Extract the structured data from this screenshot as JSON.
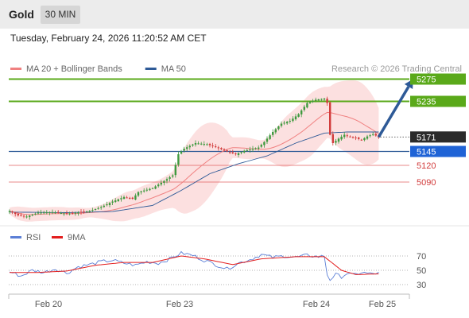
{
  "header": {
    "symbol": "Gold",
    "interval": "30 MIN"
  },
  "datetime": "Tuesday, February 24, 2026 11:20:52 AM CET",
  "legend": {
    "items": [
      {
        "label": "MA 20 + Bollinger Bands",
        "color": "#f08080"
      },
      {
        "label": "MA 50",
        "color": "#2e5a97"
      }
    ],
    "credit": "Research © 2026 Trading Central"
  },
  "rsi_legend": {
    "items": [
      {
        "label": "RSI",
        "color": "#5b7fd6"
      },
      {
        "label": "9MA",
        "color": "#e31e1e"
      }
    ]
  },
  "colors": {
    "resistance": "#5aa91a",
    "support_blue": "#2e5a97",
    "support_red": "#e06060",
    "last_price": "#2b2b2b",
    "arrow": "#2e5a97",
    "candle_up": "#3f9a3f",
    "candle_down": "#d23c3c",
    "band_fill": "#fbdada"
  },
  "chart_data": [
    {
      "type": "line",
      "title": "",
      "x_ticks": [
        "Feb 20",
        "Feb 23",
        "Feb 24",
        "Feb 25"
      ],
      "y_range": [
        5020,
        5290
      ],
      "last_price": 5171,
      "levels": [
        {
          "value": 5275,
          "kind": "resistance"
        },
        {
          "value": 5235,
          "kind": "resistance"
        },
        {
          "value": 5145,
          "kind": "support"
        },
        {
          "value": 5120,
          "kind": "support_minor"
        },
        {
          "value": 5090,
          "kind": "support_minor"
        }
      ],
      "close_path": [
        {
          "bar": 0,
          "close": 5038
        },
        {
          "bar": 3,
          "close": 5030
        },
        {
          "bar": 6,
          "close": 5028
        },
        {
          "bar": 10,
          "close": 5035
        },
        {
          "bar": 15,
          "close": 5036
        },
        {
          "bar": 20,
          "close": 5033
        },
        {
          "bar": 25,
          "close": 5036
        },
        {
          "bar": 28,
          "close": 5038
        },
        {
          "bar": 32,
          "close": 5045
        },
        {
          "bar": 36,
          "close": 5055
        },
        {
          "bar": 40,
          "close": 5063
        },
        {
          "bar": 43,
          "close": 5060
        },
        {
          "bar": 45,
          "close": 5072
        },
        {
          "bar": 50,
          "close": 5079
        },
        {
          "bar": 54,
          "close": 5092
        },
        {
          "bar": 57,
          "close": 5102
        },
        {
          "bar": 59,
          "close": 5140
        },
        {
          "bar": 61,
          "close": 5150
        },
        {
          "bar": 65,
          "close": 5160
        },
        {
          "bar": 69,
          "close": 5158
        },
        {
          "bar": 73,
          "close": 5151
        },
        {
          "bar": 76,
          "close": 5145
        },
        {
          "bar": 79,
          "close": 5140
        },
        {
          "bar": 82,
          "close": 5146
        },
        {
          "bar": 85,
          "close": 5150
        },
        {
          "bar": 87,
          "close": 5152
        },
        {
          "bar": 89,
          "close": 5162
        },
        {
          "bar": 92,
          "close": 5180
        },
        {
          "bar": 95,
          "close": 5195
        },
        {
          "bar": 98,
          "close": 5200
        },
        {
          "bar": 101,
          "close": 5212
        },
        {
          "bar": 104,
          "close": 5232
        },
        {
          "bar": 107,
          "close": 5238
        },
        {
          "bar": 110,
          "close": 5240
        },
        {
          "bar": 111,
          "close": 5232
        },
        {
          "bar": 112,
          "close": 5175
        },
        {
          "bar": 113,
          "close": 5160
        },
        {
          "bar": 115,
          "close": 5168
        },
        {
          "bar": 117,
          "close": 5175
        },
        {
          "bar": 120,
          "close": 5170
        },
        {
          "bar": 123,
          "close": 5166
        },
        {
          "bar": 125,
          "close": 5172
        },
        {
          "bar": 127,
          "close": 5176
        },
        {
          "bar": 129,
          "close": 5171
        }
      ],
      "ma50": [
        {
          "bar": 0,
          "value": 5036
        },
        {
          "bar": 20,
          "value": 5035
        },
        {
          "bar": 36,
          "value": 5037
        },
        {
          "bar": 50,
          "value": 5048
        },
        {
          "bar": 60,
          "value": 5075
        },
        {
          "bar": 70,
          "value": 5105
        },
        {
          "bar": 80,
          "value": 5123
        },
        {
          "bar": 90,
          "value": 5137
        },
        {
          "bar": 100,
          "value": 5160
        },
        {
          "bar": 110,
          "value": 5178
        },
        {
          "bar": 118,
          "value": 5180
        },
        {
          "bar": 129,
          "value": 5180
        }
      ],
      "projection": {
        "from_bar": 129,
        "from_value": 5171,
        "to_bar": 141,
        "to_value": 5275
      },
      "rsi": {
        "axis_ticks": [
          70,
          50,
          30
        ],
        "y_range": [
          20,
          80
        ],
        "rsi": [
          {
            "bar": 0,
            "value": 48
          },
          {
            "bar": 4,
            "value": 42
          },
          {
            "bar": 8,
            "value": 50
          },
          {
            "bar": 12,
            "value": 47
          },
          {
            "bar": 16,
            "value": 52
          },
          {
            "bar": 20,
            "value": 46
          },
          {
            "bar": 24,
            "value": 55
          },
          {
            "bar": 28,
            "value": 58
          },
          {
            "bar": 32,
            "value": 62
          },
          {
            "bar": 36,
            "value": 64
          },
          {
            "bar": 40,
            "value": 60
          },
          {
            "bar": 44,
            "value": 57
          },
          {
            "bar": 48,
            "value": 62
          },
          {
            "bar": 52,
            "value": 60
          },
          {
            "bar": 56,
            "value": 66
          },
          {
            "bar": 60,
            "value": 74
          },
          {
            "bar": 64,
            "value": 71
          },
          {
            "bar": 68,
            "value": 64
          },
          {
            "bar": 72,
            "value": 58
          },
          {
            "bar": 76,
            "value": 52
          },
          {
            "bar": 80,
            "value": 60
          },
          {
            "bar": 84,
            "value": 65
          },
          {
            "bar": 88,
            "value": 72
          },
          {
            "bar": 92,
            "value": 68
          },
          {
            "bar": 96,
            "value": 70
          },
          {
            "bar": 100,
            "value": 68
          },
          {
            "bar": 104,
            "value": 71
          },
          {
            "bar": 108,
            "value": 69
          },
          {
            "bar": 110,
            "value": 70
          },
          {
            "bar": 111,
            "value": 44
          },
          {
            "bar": 112,
            "value": 37
          },
          {
            "bar": 114,
            "value": 44
          },
          {
            "bar": 116,
            "value": 41
          },
          {
            "bar": 118,
            "value": 46
          },
          {
            "bar": 120,
            "value": 43
          },
          {
            "bar": 123,
            "value": 47
          },
          {
            "bar": 126,
            "value": 45
          },
          {
            "bar": 129,
            "value": 46
          }
        ],
        "ma9": [
          {
            "bar": 0,
            "value": 47
          },
          {
            "bar": 10,
            "value": 47
          },
          {
            "bar": 20,
            "value": 49
          },
          {
            "bar": 30,
            "value": 57
          },
          {
            "bar": 40,
            "value": 61
          },
          {
            "bar": 50,
            "value": 61
          },
          {
            "bar": 60,
            "value": 70
          },
          {
            "bar": 68,
            "value": 66
          },
          {
            "bar": 78,
            "value": 58
          },
          {
            "bar": 88,
            "value": 66
          },
          {
            "bar": 100,
            "value": 69
          },
          {
            "bar": 110,
            "value": 69
          },
          {
            "bar": 116,
            "value": 50
          },
          {
            "bar": 121,
            "value": 44
          },
          {
            "bar": 129,
            "value": 45
          }
        ]
      }
    }
  ]
}
